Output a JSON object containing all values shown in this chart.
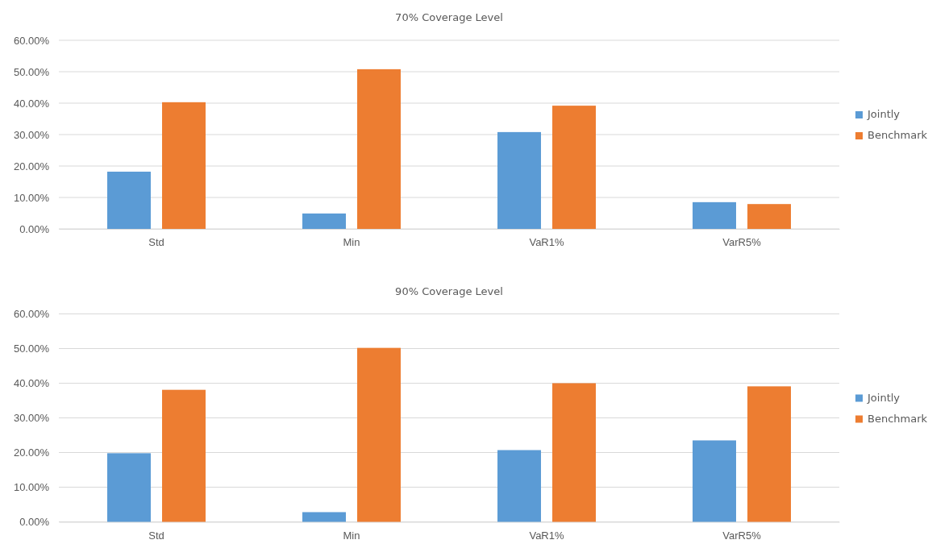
{
  "chart_data": [
    {
      "type": "bar",
      "title": "70% Coverage Level",
      "categories": [
        "Std",
        "Min",
        "VaR1%",
        "VarR5%"
      ],
      "series": [
        {
          "name": "Jointly",
          "color": "#5b9bd5",
          "values": [
            18.2,
            4.9,
            30.8,
            8.5
          ]
        },
        {
          "name": "Benchmark",
          "color": "#ed7d31",
          "values": [
            40.3,
            50.8,
            39.2,
            7.9
          ]
        }
      ],
      "ylim": [
        0,
        60
      ],
      "yticks": [
        {
          "value": 0,
          "label": "0.00%"
        },
        {
          "value": 10,
          "label": "10.00%"
        },
        {
          "value": 20,
          "label": "20.00%"
        },
        {
          "value": 30,
          "label": "30.00%"
        },
        {
          "value": 40,
          "label": "40.00%"
        },
        {
          "value": 50,
          "label": "50.00%"
        },
        {
          "value": 60,
          "label": "60.00%"
        }
      ],
      "grid": "y",
      "legend": "right"
    },
    {
      "type": "bar",
      "title": "90% Coverage Level",
      "categories": [
        "Std",
        "Min",
        "VaR1%",
        "VarR5%"
      ],
      "series": [
        {
          "name": "Jointly",
          "color": "#5b9bd5",
          "values": [
            19.8,
            2.8,
            20.7,
            23.5
          ]
        },
        {
          "name": "Benchmark",
          "color": "#ed7d31",
          "values": [
            38.1,
            50.2,
            40.0,
            39.1
          ]
        }
      ],
      "ylim": [
        0,
        60
      ],
      "yticks": [
        {
          "value": 0,
          "label": "0.00%"
        },
        {
          "value": 10,
          "label": "10.00%"
        },
        {
          "value": 20,
          "label": "20.00%"
        },
        {
          "value": 30,
          "label": "30.00%"
        },
        {
          "value": 40,
          "label": "40.00%"
        },
        {
          "value": 50,
          "label": "50.00%"
        },
        {
          "value": 60,
          "label": "60.00%"
        }
      ],
      "grid": "y",
      "legend": "right"
    }
  ]
}
